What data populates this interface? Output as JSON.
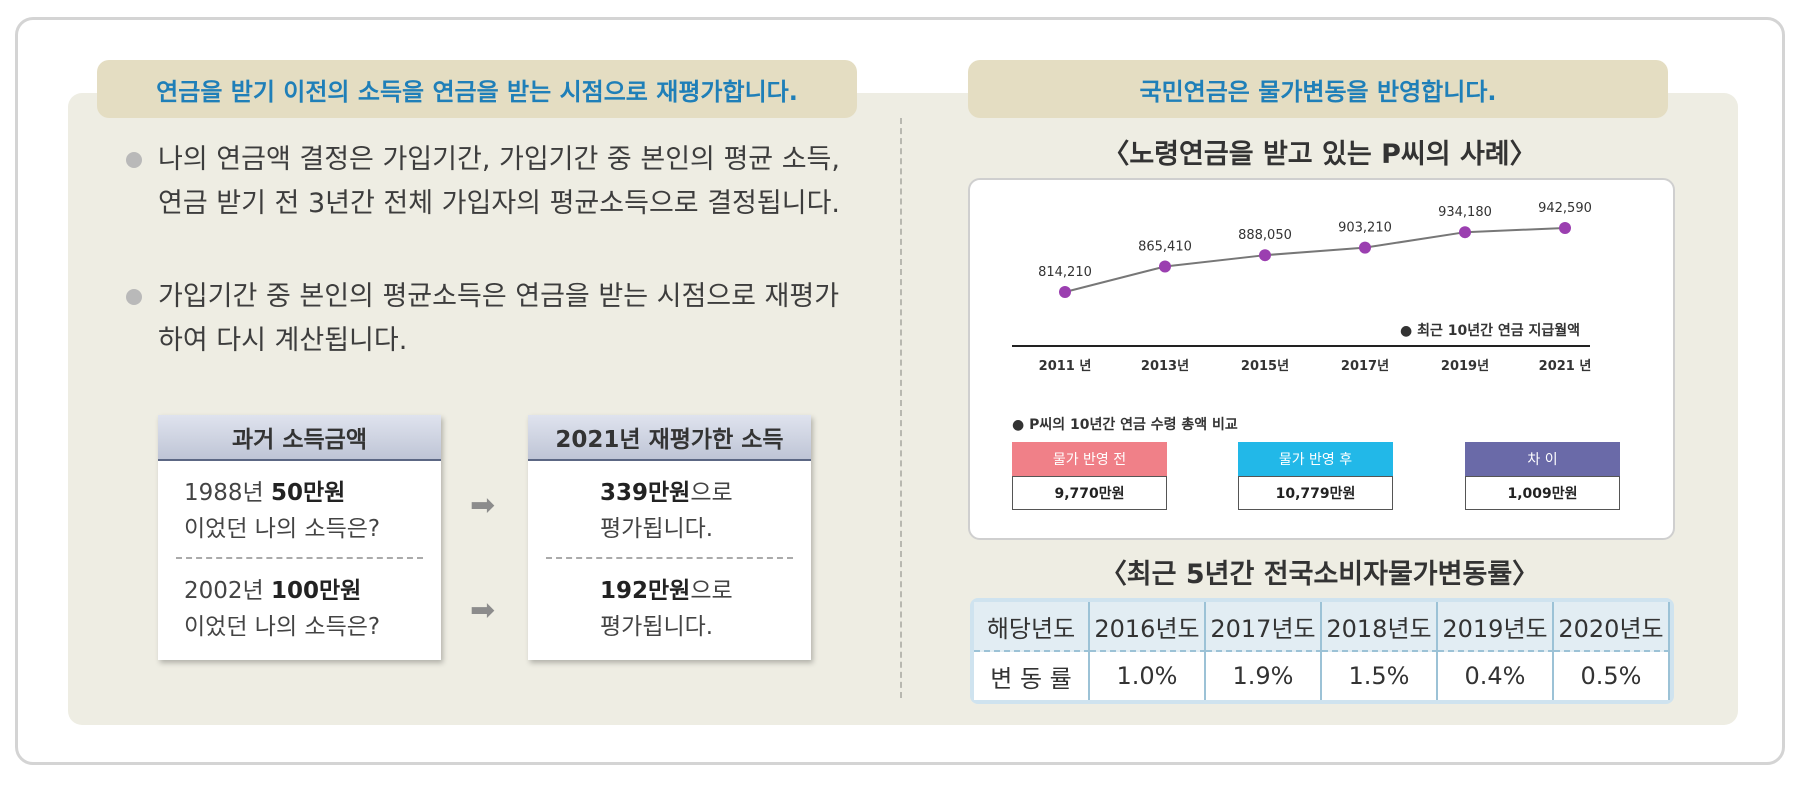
{
  "left": {
    "heading": "연금을 받기 이전의 소득을 연금을 받는 시점으로 재평가합니다.",
    "bullets": [
      "나의 연금액 결정은 가입기간, 가입기간 중 본인의 평균 소득, 연금 받기 전 3년간 전체 가입자의 평균소득으로 결정됩니다.",
      "가입기간 중 본인의 평균소득은 연금을 받는 시점으로 재평가하여 다시 계산됩니다."
    ],
    "past_card": {
      "title": "과거 소득금액",
      "row1_a": "1988년 ",
      "row1_b": "50만원",
      "row1_c": "이었던 나의 소득은?",
      "row2_a": "2002년 ",
      "row2_b": "100만원",
      "row2_c": "이었던 나의 소득은?"
    },
    "arrow_glyph": "➡",
    "revalued_card": {
      "title": "2021년 재평가한 소득",
      "row1_a": "339만원",
      "row1_b": "으로",
      "row1_c": "평가됩니다.",
      "row2_a": "192만원",
      "row2_b": "으로",
      "row2_c": "평가됩니다."
    }
  },
  "right": {
    "heading": "국민연금은 물가변동을 반영합니다.",
    "case_title": "〈노령연금을 받고 있는 P씨의 사례〉",
    "rate_title": "〈최근 5년간 전국소비자물가변동률〉",
    "chart_note": "● 최근 10년간 연금 지급월액",
    "compare_note": "● P씨의 10년간 연금 수령 총액 비교",
    "compare": [
      {
        "label": "물가 반영 전",
        "value": "9,770만원",
        "color": "#f08088"
      },
      {
        "label": "물가 반영 후",
        "value": "10,779만원",
        "color": "#22b8e8"
      },
      {
        "label": "차 이",
        "value": "1,009만원",
        "color": "#6a6aa8"
      }
    ],
    "rate_table": {
      "header": [
        "해당년도",
        "2016년도",
        "2017년도",
        "2018년도",
        "2019년도",
        "2020년도"
      ],
      "values": [
        "변 동 률",
        "1.0%",
        "1.9%",
        "1.5%",
        "0.4%",
        "0.5%"
      ]
    }
  },
  "chart_data": {
    "type": "line",
    "x": [
      "2011 년",
      "2013년",
      "2015년",
      "2017년",
      "2019년",
      "2021 년"
    ],
    "labels": [
      "814,210",
      "865,410",
      "888,050",
      "903,210",
      "934,180",
      "942,590"
    ],
    "values": [
      814210,
      865410,
      888050,
      903210,
      934180,
      942590
    ],
    "colors": {
      "line": "#777777",
      "marker": "#9b3fb0"
    }
  }
}
